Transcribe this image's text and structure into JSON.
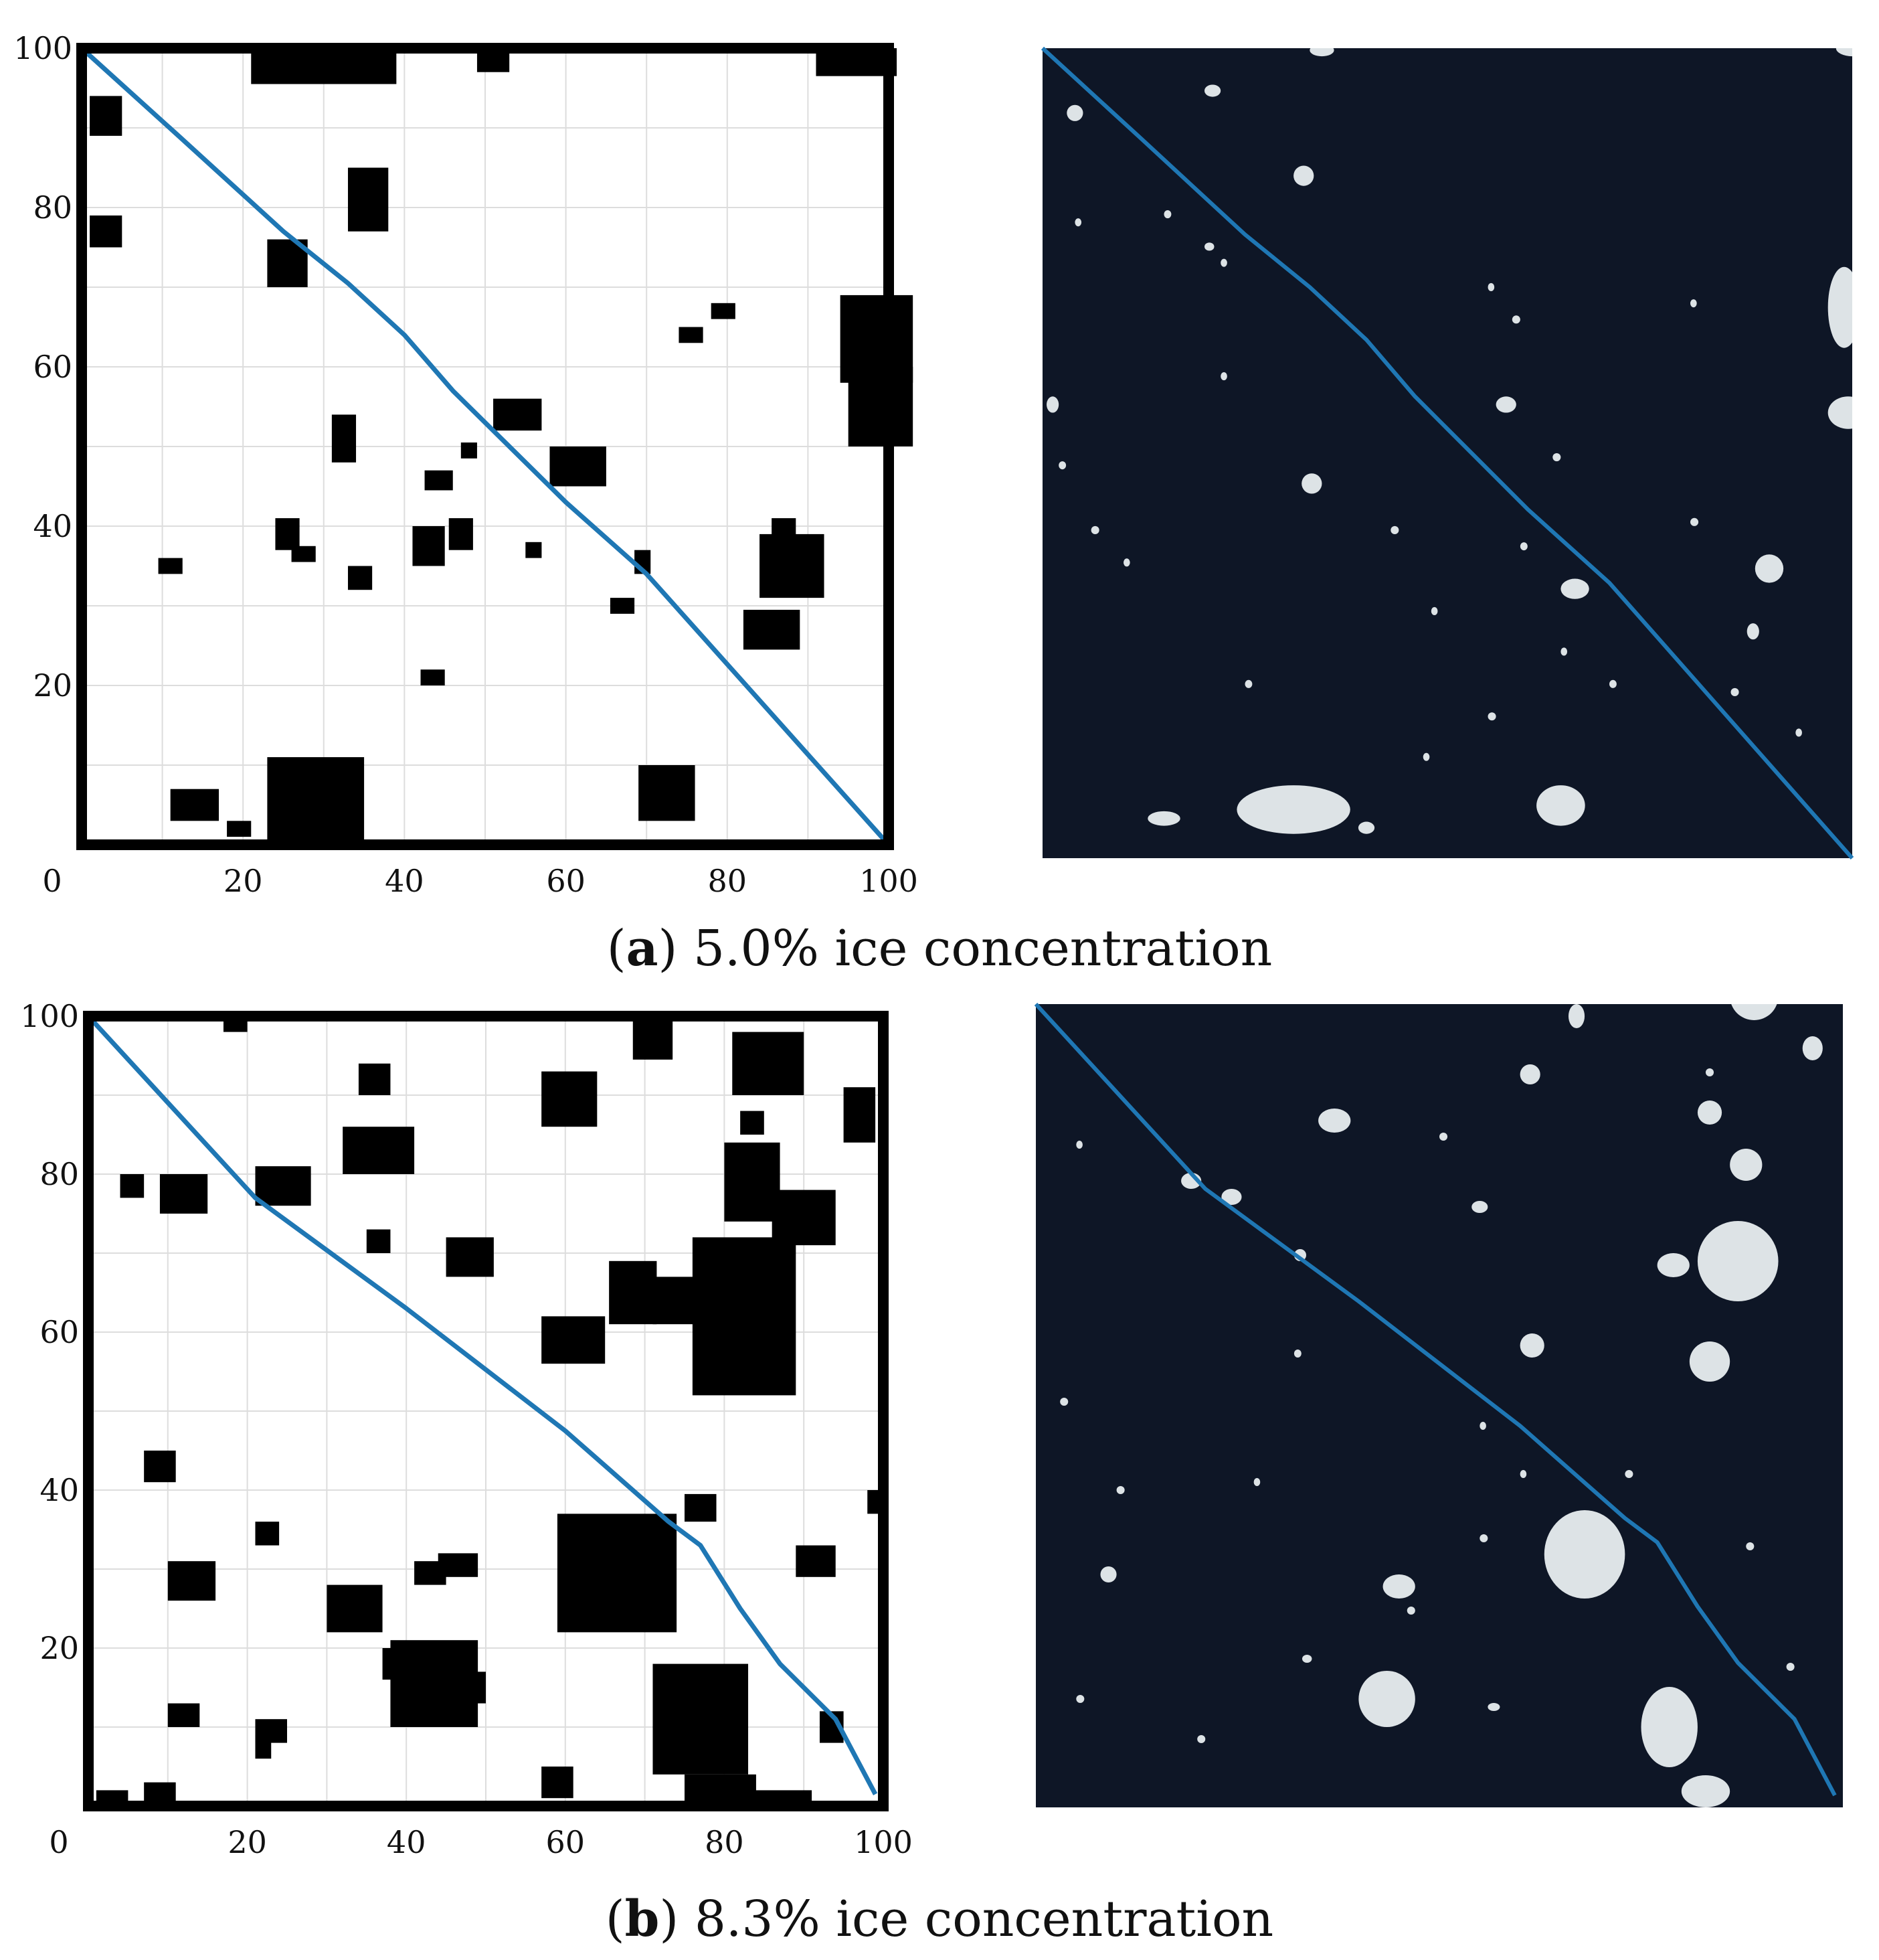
{
  "colors": {
    "path": "#1f77b4",
    "obstacle": "#000000",
    "grid": "#dddddd",
    "sea": "#0e1626",
    "ice": "#dde3e6"
  },
  "chart_data": [
    {
      "type": "line",
      "caption_label": "a",
      "caption_text": "5.0% ice concentration",
      "xlim": [
        0,
        100
      ],
      "ylim": [
        0,
        100
      ],
      "x_ticks": [
        "0",
        "20",
        "40",
        "60",
        "80",
        "100"
      ],
      "y_ticks": [
        "20",
        "40",
        "60",
        "80",
        "100"
      ],
      "grid": true,
      "path": [
        [
          0,
          100
        ],
        [
          12,
          89
        ],
        [
          25,
          77
        ],
        [
          33,
          70.5
        ],
        [
          40,
          64
        ],
        [
          46,
          57
        ],
        [
          53,
          50
        ],
        [
          60,
          43
        ],
        [
          70,
          34
        ],
        [
          100,
          0
        ]
      ],
      "obstacles": [
        [
          21,
          95.5,
          18,
          4.5
        ],
        [
          49,
          97,
          4,
          3
        ],
        [
          91,
          96.5,
          10,
          3.5
        ],
        [
          1,
          89,
          4,
          5
        ],
        [
          33,
          77,
          5,
          8
        ],
        [
          1,
          75,
          4,
          4
        ],
        [
          23,
          70,
          5,
          6
        ],
        [
          94,
          58,
          9,
          11
        ],
        [
          95,
          50,
          8,
          10
        ],
        [
          78,
          66,
          3,
          2
        ],
        [
          74,
          63,
          3,
          2
        ],
        [
          51,
          52,
          6,
          4
        ],
        [
          31,
          48,
          3,
          6
        ],
        [
          42.5,
          44.5,
          3.5,
          2.5
        ],
        [
          47,
          48.5,
          2,
          2
        ],
        [
          58,
          45,
          7,
          5
        ],
        [
          24,
          37,
          3,
          4
        ],
        [
          45.5,
          37,
          3,
          4
        ],
        [
          26,
          35.5,
          3,
          2
        ],
        [
          41,
          35,
          4,
          5
        ],
        [
          55,
          36,
          2,
          2
        ],
        [
          68.5,
          34,
          2,
          3
        ],
        [
          33,
          32,
          3,
          3
        ],
        [
          84,
          31,
          8,
          8
        ],
        [
          85.5,
          37,
          3,
          4
        ],
        [
          9.5,
          34,
          3,
          2
        ],
        [
          65.5,
          29,
          3,
          2
        ],
        [
          82,
          24.5,
          7,
          5
        ],
        [
          42,
          20,
          3,
          2
        ],
        [
          23,
          0,
          12,
          11
        ],
        [
          11,
          3,
          6,
          4
        ],
        [
          18,
          1,
          3,
          2
        ],
        [
          69,
          3,
          7,
          7
        ]
      ],
      "photo_ice": [
        [
          24,
          3,
          14,
          6
        ],
        [
          61,
          4,
          6,
          5
        ],
        [
          13,
          4,
          4,
          1.8
        ],
        [
          32,
          45,
          2.5,
          2.5
        ],
        [
          64,
          32,
          3.5,
          2.5
        ],
        [
          56,
          55,
          2.5,
          2
        ],
        [
          31,
          83,
          2.5,
          2.5
        ],
        [
          97,
          63,
          4,
          10
        ],
        [
          97,
          53,
          5,
          4
        ],
        [
          88,
          34,
          3.5,
          3.5
        ],
        [
          87,
          27,
          1.5,
          2
        ],
        [
          3,
          91,
          2,
          2
        ],
        [
          0.5,
          55,
          1.5,
          2
        ],
        [
          20,
          94,
          2,
          1.5
        ],
        [
          33,
          99,
          3,
          1.5
        ],
        [
          98,
          99,
          4,
          2
        ],
        [
          39,
          3,
          2,
          1.5
        ],
        [
          47,
          12,
          0.8,
          1
        ],
        [
          59,
          38,
          0.9,
          1
        ],
        [
          48,
          30,
          0.8,
          1
        ],
        [
          63,
          49,
          1,
          1
        ],
        [
          43,
          40,
          1,
          1
        ],
        [
          20,
          75,
          1.2,
          1
        ],
        [
          22,
          73,
          0.8,
          1
        ],
        [
          15,
          79,
          0.9,
          1
        ],
        [
          4,
          78,
          0.8,
          1
        ],
        [
          2,
          48,
          0.9,
          1
        ],
        [
          6,
          40,
          1,
          1
        ],
        [
          10,
          36,
          0.8,
          1
        ],
        [
          25,
          21,
          0.9,
          1
        ],
        [
          55,
          17,
          1,
          1
        ],
        [
          64,
          25,
          0.8,
          1
        ],
        [
          70,
          21,
          0.9,
          1
        ],
        [
          80,
          41,
          1,
          1
        ],
        [
          58,
          66,
          1,
          1
        ],
        [
          80,
          68,
          0.8,
          1
        ],
        [
          55,
          70,
          0.8,
          1
        ],
        [
          22,
          59,
          0.8,
          1
        ],
        [
          85,
          20,
          1,
          1
        ],
        [
          93,
          15,
          0.8,
          1
        ]
      ]
    },
    {
      "type": "line",
      "caption_label": "b",
      "caption_text": "8.3% ice concentration",
      "xlim": [
        0,
        100
      ],
      "ylim": [
        0,
        100
      ],
      "x_ticks": [
        "0",
        "20",
        "40",
        "60",
        "80",
        "100"
      ],
      "y_ticks": [
        "20",
        "40",
        "60",
        "80",
        "100"
      ],
      "grid": true,
      "path": [
        [
          0,
          100
        ],
        [
          21,
          77
        ],
        [
          40,
          63
        ],
        [
          60,
          47.5
        ],
        [
          73,
          36
        ],
        [
          77,
          33
        ],
        [
          82,
          25
        ],
        [
          87,
          18
        ],
        [
          94,
          11
        ],
        [
          99,
          1.5
        ]
      ],
      "obstacles": [
        [
          17,
          98,
          3,
          2
        ],
        [
          68.5,
          94.5,
          5,
          5.5
        ],
        [
          81,
          90,
          9,
          8
        ],
        [
          34,
          90,
          4,
          4
        ],
        [
          57,
          86,
          7,
          7
        ],
        [
          95,
          84,
          4,
          7
        ],
        [
          82,
          85,
          3,
          3
        ],
        [
          4,
          77,
          3,
          3
        ],
        [
          9,
          75,
          6,
          5
        ],
        [
          21,
          76,
          7,
          5
        ],
        [
          32,
          80,
          9,
          6
        ],
        [
          80,
          74,
          7,
          10
        ],
        [
          86,
          71,
          8,
          7
        ],
        [
          35,
          70,
          3,
          3
        ],
        [
          45,
          67,
          6,
          5
        ],
        [
          65.5,
          61,
          6,
          8
        ],
        [
          71,
          61,
          6,
          6
        ],
        [
          76,
          52,
          13,
          20
        ],
        [
          57,
          56,
          8,
          6
        ],
        [
          7,
          41,
          4,
          4
        ],
        [
          75,
          36,
          4,
          3.5
        ],
        [
          98,
          37,
          2,
          3
        ],
        [
          21,
          33,
          3,
          3
        ],
        [
          59,
          22,
          15,
          15
        ],
        [
          89,
          29,
          5,
          4
        ],
        [
          10,
          26,
          6,
          5
        ],
        [
          41,
          28,
          4,
          3
        ],
        [
          30,
          22,
          7,
          6
        ],
        [
          44,
          29,
          5,
          3
        ],
        [
          37,
          16,
          5,
          4
        ],
        [
          38,
          10,
          11,
          11
        ],
        [
          47,
          13,
          3,
          4
        ],
        [
          21,
          8,
          4,
          3
        ],
        [
          21,
          6,
          2,
          3
        ],
        [
          10,
          10,
          4,
          3
        ],
        [
          57,
          1,
          4,
          4
        ],
        [
          71,
          4,
          12,
          14
        ],
        [
          75,
          0,
          9,
          4
        ],
        [
          92,
          8,
          3,
          4
        ],
        [
          83,
          0,
          8,
          2
        ],
        [
          1,
          0,
          4,
          2
        ],
        [
          7,
          0,
          4,
          3
        ]
      ],
      "photo_ice": [
        [
          18,
          77,
          2.5,
          2
        ],
        [
          23,
          75,
          2.5,
          2
        ],
        [
          32,
          68,
          1.5,
          1.5
        ],
        [
          63,
          26,
          10,
          11
        ],
        [
          43,
          26,
          4,
          3
        ],
        [
          40,
          10,
          7,
          7
        ],
        [
          75,
          5,
          7,
          10
        ],
        [
          80,
          0,
          6,
          4
        ],
        [
          56,
          12,
          1.5,
          1
        ],
        [
          82,
          63,
          10,
          10
        ],
        [
          77,
          66,
          4,
          3
        ],
        [
          81,
          53,
          5,
          5
        ],
        [
          60,
          56,
          3,
          3
        ],
        [
          86,
          98,
          6,
          6
        ],
        [
          82,
          85,
          3,
          3
        ],
        [
          86,
          78,
          4,
          4
        ],
        [
          95,
          93,
          2.5,
          3
        ],
        [
          35,
          84,
          4,
          3
        ],
        [
          66,
          97,
          2,
          3
        ],
        [
          60,
          90,
          2.5,
          2.5
        ],
        [
          83,
          91,
          1,
          1
        ],
        [
          54,
          74,
          2,
          1.5
        ],
        [
          8,
          28,
          2,
          2
        ],
        [
          3,
          50,
          1,
          1
        ],
        [
          10,
          39,
          1,
          1
        ],
        [
          5,
          13,
          1,
          1
        ],
        [
          20,
          8,
          1,
          1
        ],
        [
          33,
          18,
          1.2,
          1
        ],
        [
          46,
          24,
          1,
          1
        ],
        [
          55,
          33,
          1,
          1
        ],
        [
          60,
          41,
          0.8,
          1
        ],
        [
          73,
          41,
          1,
          1
        ],
        [
          88,
          32,
          1,
          1
        ],
        [
          93,
          17,
          1,
          1
        ],
        [
          100,
          24,
          0.8,
          1
        ],
        [
          5,
          82,
          0.8,
          1
        ],
        [
          55,
          47,
          0.8,
          1
        ],
        [
          32,
          56,
          0.9,
          1
        ],
        [
          27,
          40,
          0.8,
          1
        ],
        [
          50,
          83,
          1,
          1
        ]
      ]
    }
  ]
}
